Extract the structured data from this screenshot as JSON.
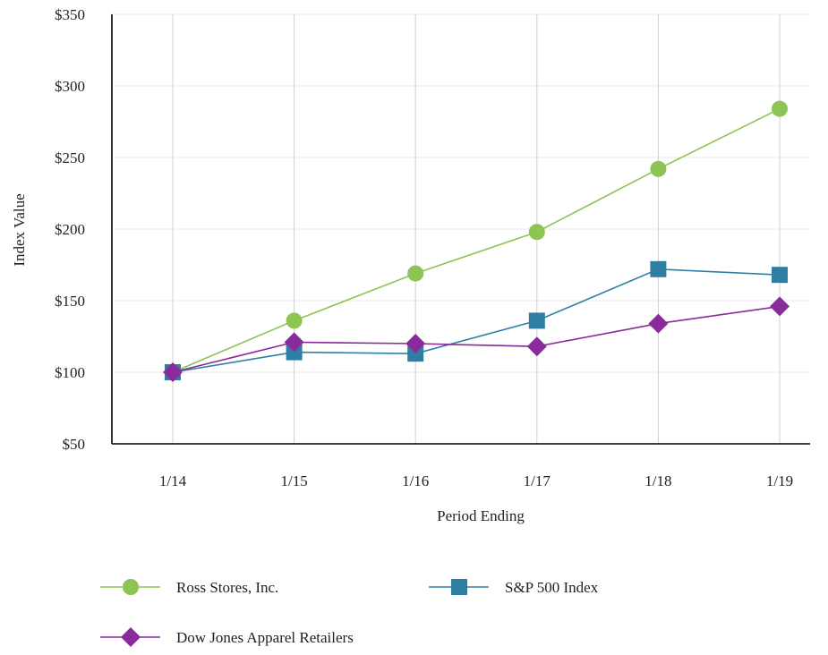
{
  "chart_data": {
    "type": "line",
    "title": "",
    "xlabel": "Period Ending",
    "ylabel": "Index Value",
    "categories": [
      "1/14",
      "1/15",
      "1/16",
      "1/17",
      "1/18",
      "1/19"
    ],
    "ylim": [
      50,
      350
    ],
    "yticks": [
      50,
      100,
      150,
      200,
      250,
      300,
      350
    ],
    "ytick_labels": [
      "$50",
      "$100",
      "$150",
      "$200",
      "$250",
      "$300",
      "$350"
    ],
    "grid": true,
    "legend_position": "bottom",
    "series": [
      {
        "name": "Ross Stores, Inc.",
        "values": [
          100,
          136,
          169,
          198,
          242,
          284
        ],
        "color": "#8dc453",
        "marker": "circle"
      },
      {
        "name": "S&P 500 Index",
        "values": [
          100,
          114,
          113,
          136,
          172,
          168
        ],
        "color": "#2e7fa3",
        "marker": "square"
      },
      {
        "name": "Dow Jones Apparel Retailers",
        "values": [
          100,
          121,
          120,
          118,
          134,
          146
        ],
        "color": "#8a2b9c",
        "marker": "diamond"
      }
    ]
  }
}
